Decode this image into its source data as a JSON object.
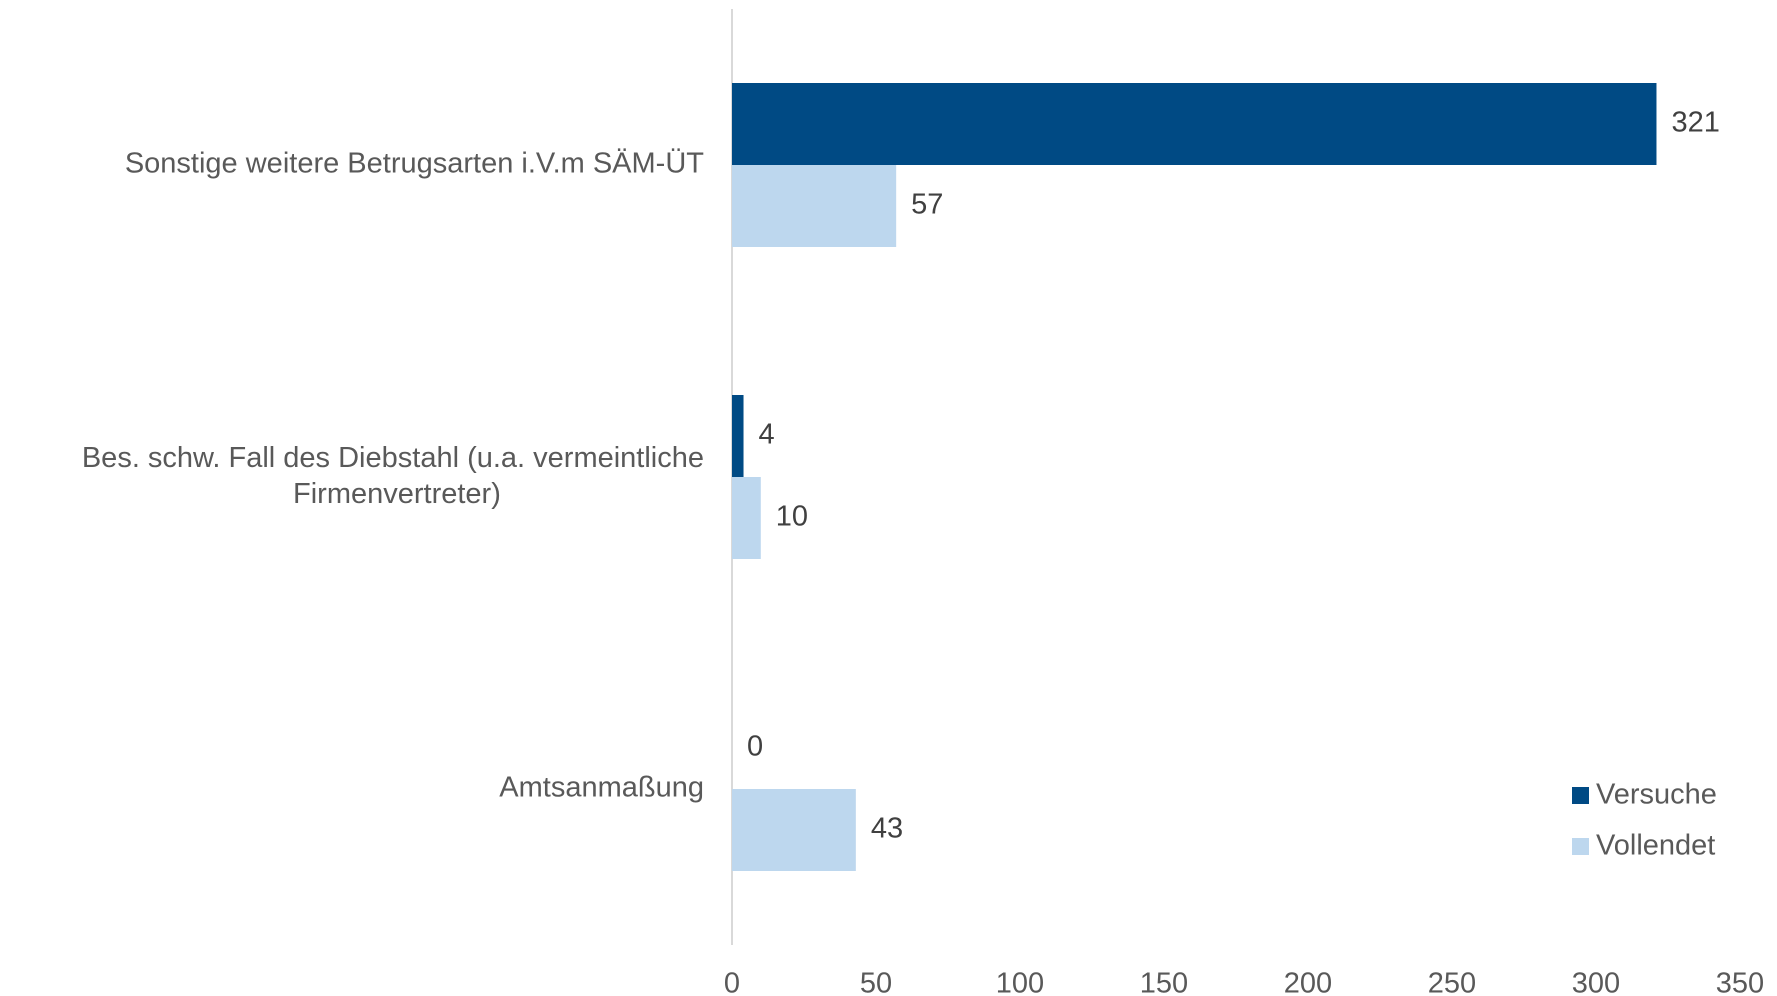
{
  "chart_data": {
    "type": "bar",
    "orientation": "horizontal",
    "categories": [
      "Sonstige weitere Betrugsarten i.V.m SÄM-ÜT",
      "Bes. schw. Fall des Diebstahl (u.a. vermeintliche Firmenvertreter)",
      "Amtsanmaßung"
    ],
    "series": [
      {
        "name": "Versuche",
        "color": "#004a84",
        "values": [
          321,
          4,
          0
        ]
      },
      {
        "name": "Vollendet",
        "color": "#bdd7ee",
        "values": [
          57,
          10,
          43
        ]
      }
    ],
    "xlim": [
      0,
      350
    ],
    "xticks": [
      0,
      50,
      100,
      150,
      200,
      250,
      300,
      350
    ],
    "grid": false,
    "legend": "lower right"
  }
}
